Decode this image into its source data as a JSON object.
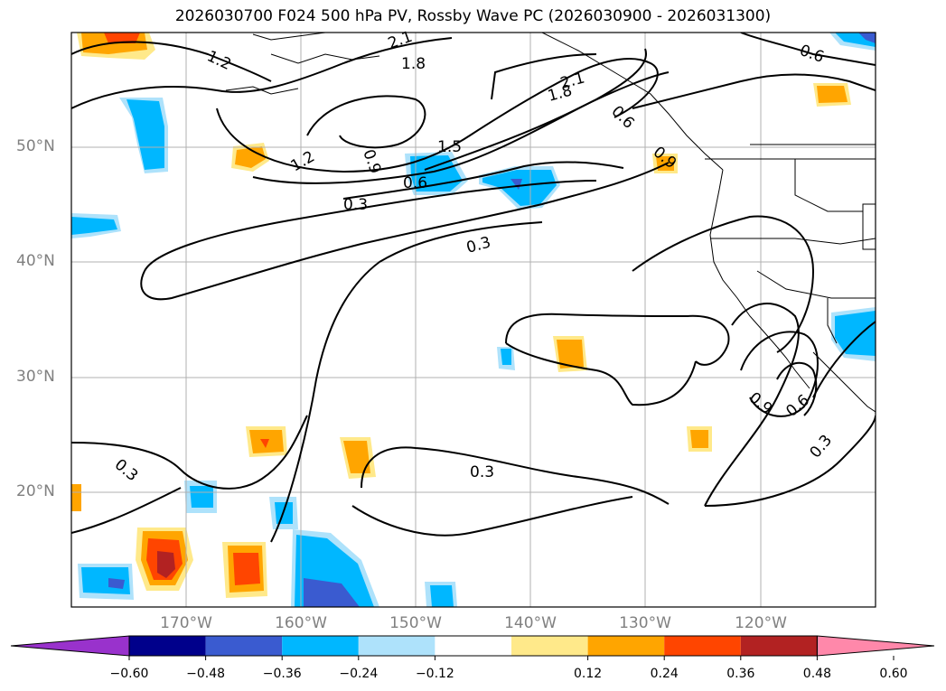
{
  "title": "2026030700 F024 500 hPa PV, Rossby Wave PC (2026030900 - 2026031300)",
  "map": {
    "lat_labels": [
      {
        "text": "50°N",
        "lat": 50
      },
      {
        "text": "40°N",
        "lat": 40
      },
      {
        "text": "30°N",
        "lat": 30
      },
      {
        "text": "20°N",
        "lat": 20
      }
    ],
    "lon_labels": [
      {
        "text": "170°W",
        "lon": -170
      },
      {
        "text": "160°W",
        "lon": -160
      },
      {
        "text": "150°W",
        "lon": -150
      },
      {
        "text": "140°W",
        "lon": -140
      },
      {
        "text": "130°W",
        "lon": -130
      },
      {
        "text": "120°W",
        "lon": -120
      }
    ],
    "contour_labels": [
      "2.1",
      "1.2",
      "1.8",
      "2.1",
      "1.8",
      "1.5",
      "1.2",
      "0.9",
      "0.6",
      "0.3",
      "0.3",
      "0.6",
      "0.9",
      "0.6",
      "0.3",
      "0.3",
      "0.3",
      "0.9",
      "0.6"
    ],
    "extent": {
      "lon_min": -180,
      "lon_max": -110,
      "lat_min": 10,
      "lat_max": 60
    }
  },
  "colorbar": {
    "ticks": [
      "−0.60",
      "−0.48",
      "−0.36",
      "−0.24",
      "−0.12",
      "0.12",
      "0.24",
      "0.36",
      "0.48",
      "0.60"
    ],
    "colors": [
      "#9932cc",
      "#00008b",
      "#3a5bd0",
      "#00b7ff",
      "#aee2fb",
      "#ffffff",
      "#ffe98a",
      "#ffa500",
      "#ff4500",
      "#b22222",
      "#ff88aa"
    ]
  }
}
